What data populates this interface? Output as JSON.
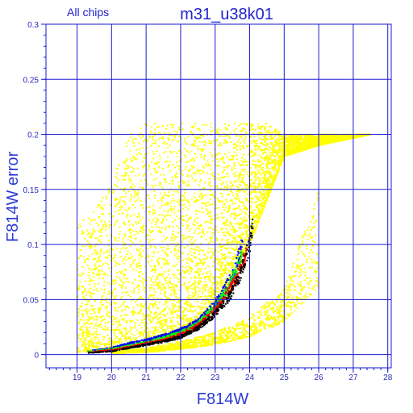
{
  "chart_data": {
    "type": "scatter",
    "title": "m31_u38k01",
    "subtitle": "All chips",
    "xlabel": "F814W",
    "ylabel": "F814W error",
    "xlim": [
      18.1,
      28.1
    ],
    "ylim": [
      -0.012,
      0.3
    ],
    "x_ticks": [
      19,
      20,
      21,
      22,
      23,
      24,
      25,
      26,
      27,
      28
    ],
    "x_tick_labels": [
      "19",
      "20",
      "21",
      "22",
      "23",
      "24",
      "25",
      "26",
      "27",
      "28"
    ],
    "y_ticks": [
      0,
      0.05,
      0.1,
      0.15,
      0.2,
      0.25,
      0.3
    ],
    "y_tick_labels": [
      "0",
      "0.05",
      "0.1",
      "0.15",
      "0.2",
      "0.25",
      "0.3"
    ],
    "grid": true,
    "colors": {
      "grid": "#1a1ad4",
      "frame": "#1a1ad4",
      "text": "#2222cc",
      "yellow": "#ffff00",
      "blue": "#0000ff",
      "green": "#00ff00",
      "red": "#ff0000",
      "black": "#000000"
    },
    "series": [
      {
        "color": "yellow",
        "description": "main photometry cloud",
        "x": [
          19.0,
          19.5,
          20.0,
          20.5,
          21.0,
          21.5,
          22.0,
          22.5,
          23.0,
          23.5,
          24.0,
          24.5,
          25.0,
          26.0,
          27.5
        ],
        "y_lower": [
          0.002,
          0.003,
          0.005,
          0.008,
          0.012,
          0.016,
          0.022,
          0.03,
          0.045,
          0.07,
          0.1,
          0.14,
          0.18,
          0.19,
          0.2
        ],
        "y_upper": [
          0.12,
          0.13,
          0.16,
          0.2,
          0.21,
          0.21,
          0.21,
          0.21,
          0.21,
          0.21,
          0.21,
          0.21,
          0.2,
          0.2,
          0.2
        ]
      },
      {
        "color": "yellow",
        "description": "lower sequences",
        "x": [
          20.0,
          21.0,
          22.0,
          23.0,
          24.0,
          25.0,
          26.0
        ],
        "y_lower": [
          0.001,
          0.002,
          0.005,
          0.009,
          0.016,
          0.03,
          0.06
        ],
        "y_upper": [
          0.003,
          0.006,
          0.012,
          0.02,
          0.035,
          0.06,
          0.15
        ]
      },
      {
        "color": "blue",
        "description": "envelope sequence",
        "x": [
          19.3,
          20.0,
          20.5,
          21.0,
          21.5,
          22.0,
          22.5,
          23.0,
          23.3,
          23.5,
          23.8
        ],
        "y": [
          0.003,
          0.006,
          0.01,
          0.013,
          0.017,
          0.022,
          0.03,
          0.046,
          0.06,
          0.073,
          0.1
        ]
      },
      {
        "color": "green",
        "description": "envelope sequence",
        "x": [
          19.3,
          20.0,
          20.5,
          21.0,
          21.5,
          22.0,
          22.5,
          23.0,
          23.3,
          23.5,
          23.8
        ],
        "y": [
          0.0025,
          0.005,
          0.008,
          0.011,
          0.015,
          0.02,
          0.028,
          0.043,
          0.056,
          0.068,
          0.093
        ]
      },
      {
        "color": "red",
        "description": "envelope sequence",
        "x": [
          19.3,
          20.0,
          20.5,
          21.0,
          21.5,
          22.0,
          22.5,
          23.0,
          23.3,
          23.6,
          23.9
        ],
        "y": [
          0.002,
          0.004,
          0.007,
          0.01,
          0.013,
          0.018,
          0.026,
          0.04,
          0.052,
          0.068,
          0.09
        ]
      },
      {
        "color": "black",
        "description": "envelope sequence",
        "x": [
          19.3,
          20.0,
          20.5,
          21.0,
          21.5,
          22.0,
          22.5,
          23.0,
          23.4,
          23.7,
          24.0,
          24.1
        ],
        "y": [
          0.0015,
          0.003,
          0.006,
          0.009,
          0.012,
          0.016,
          0.024,
          0.037,
          0.052,
          0.07,
          0.1,
          0.12
        ]
      }
    ]
  }
}
